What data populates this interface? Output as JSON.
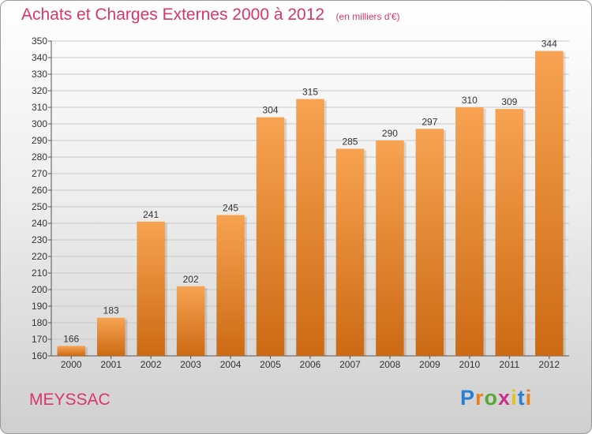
{
  "title": "Achats et Charges Externes 2000 à 2012",
  "subtitle": "(en milliers d'€)",
  "commune": "MEYSSAC",
  "logo": {
    "text": "Proxiti",
    "letter_colors": [
      "#2a7fd4",
      "#e6801e",
      "#5aa832",
      "#c9308a",
      "#e6c21e",
      "#2a7fd4",
      "#e6801e"
    ]
  },
  "colors": {
    "title": "#d9366b",
    "bar_light": "#f7a352",
    "bar_dark": "#cc6a14",
    "grid": "#c8c8c8"
  },
  "chart_data": {
    "type": "bar",
    "categories": [
      "2000",
      "2001",
      "2002",
      "2003",
      "2004",
      "2005",
      "2006",
      "2007",
      "2008",
      "2009",
      "2010",
      "2011",
      "2012"
    ],
    "values": [
      166,
      183,
      241,
      202,
      245,
      304,
      315,
      285,
      290,
      297,
      310,
      309,
      344
    ],
    "ylim": [
      160,
      350
    ],
    "yticks": [
      160,
      170,
      180,
      190,
      200,
      210,
      220,
      230,
      240,
      250,
      260,
      270,
      280,
      290,
      300,
      310,
      320,
      330,
      340,
      350
    ],
    "grid": true,
    "data_labels": true
  }
}
